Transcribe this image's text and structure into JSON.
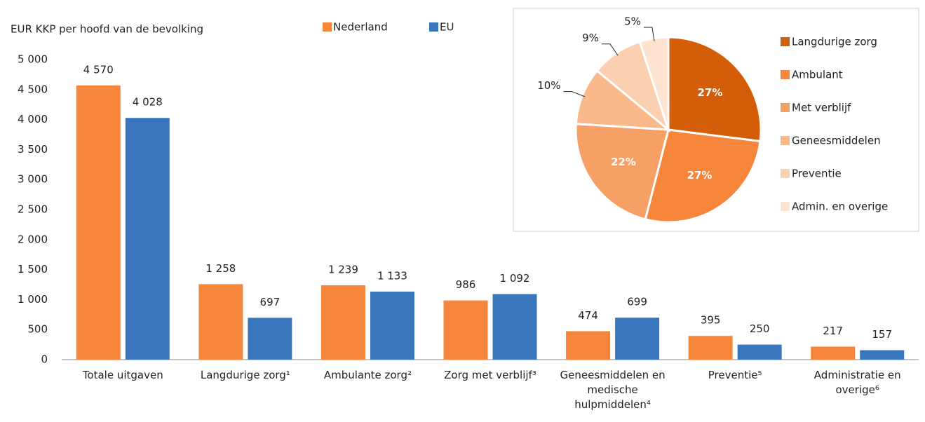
{
  "chart_data": [
    {
      "type": "bar",
      "y_label": "EUR KKP per hoofd van de bevolking",
      "categories": [
        "Totale uitgaven",
        "Langdurige zorg¹",
        "Ambulante zorg²",
        "Zorg met verblijf³",
        "Geneesmiddelen en medische hulpmiddelen⁴",
        "Preventie⁵",
        "Administratie en overige⁶"
      ],
      "series": [
        {
          "name": "Nederland",
          "color": "#f5863b",
          "values": [
            4570,
            1258,
            1239,
            986,
            474,
            395,
            217
          ],
          "value_labels": [
            "4 570",
            "1 258",
            "1 239",
            "986",
            "474",
            "395",
            "217"
          ]
        },
        {
          "name": "EU",
          "color": "#3a76bd",
          "values": [
            4028,
            697,
            1133,
            1092,
            699,
            250,
            157
          ],
          "value_labels": [
            "4 028",
            "697",
            "1 133",
            "1 092",
            "699",
            "250",
            "157"
          ]
        }
      ],
      "ylim": [
        0,
        5000
      ],
      "yticks": [
        0,
        500,
        {
          "value": 1000,
          "label": "1 000"
        },
        {
          "value": 1500,
          "label": "1 500"
        },
        {
          "value": 2000,
          "label": "2 000"
        },
        {
          "value": 2500,
          "label": "2 500"
        },
        {
          "value": 3000,
          "label": "3 000"
        },
        {
          "value": 3500,
          "label": "3 500"
        },
        {
          "value": 4000,
          "label": "4 000"
        },
        {
          "value": 4500,
          "label": "4 500"
        },
        {
          "value": 5000,
          "label": "5 000"
        }
      ],
      "grid": false
    },
    {
      "type": "pie",
      "categories": [
        "Langdurige zorg",
        "Ambulant",
        "Met verblijf",
        "Geneesmiddelen",
        "Preventie",
        "Admin. en overige"
      ],
      "values": [
        27,
        27,
        22,
        10,
        9,
        5
      ],
      "value_labels": [
        "27%",
        "27%",
        "22%",
        "10%",
        "9%",
        "5%"
      ],
      "colors": [
        "#d45d0a",
        "#f5863b",
        "#f7a066",
        "#f9b98b",
        "#fbd0b0",
        "#fde3d0"
      ]
    }
  ]
}
